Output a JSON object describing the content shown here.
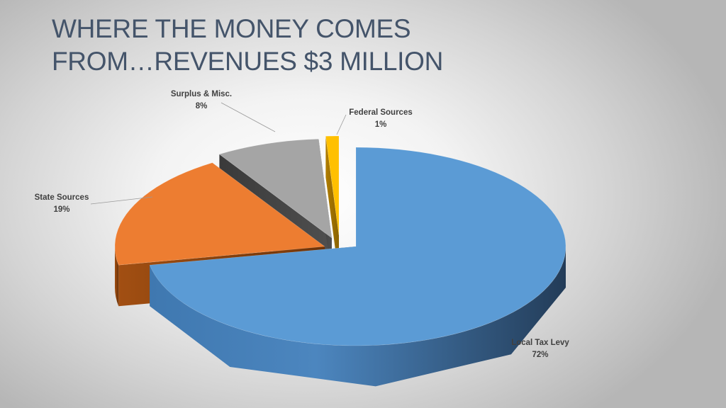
{
  "slide": {
    "title_line1": "WHERE THE MONEY COMES",
    "title_line2": "FROM…REVENUES $3 MILLION"
  },
  "chart_data": {
    "type": "pie",
    "subtype": "3d-exploded",
    "title": "WHERE THE MONEY COMES FROM…REVENUES $3 MILLION",
    "legend": "none",
    "slices": [
      {
        "label": "Local Tax Levy",
        "percent_label": "72%",
        "value": 72,
        "color": "#5b9bd5"
      },
      {
        "label": "State Sources",
        "percent_label": "19%",
        "value": 19,
        "color": "#ed7d31"
      },
      {
        "label": "Surplus & Misc.",
        "percent_label": "8%",
        "value": 8,
        "color": "#a5a5a5"
      },
      {
        "label": "Federal Sources",
        "percent_label": "1%",
        "value": 1,
        "color": "#ffc000"
      }
    ]
  }
}
